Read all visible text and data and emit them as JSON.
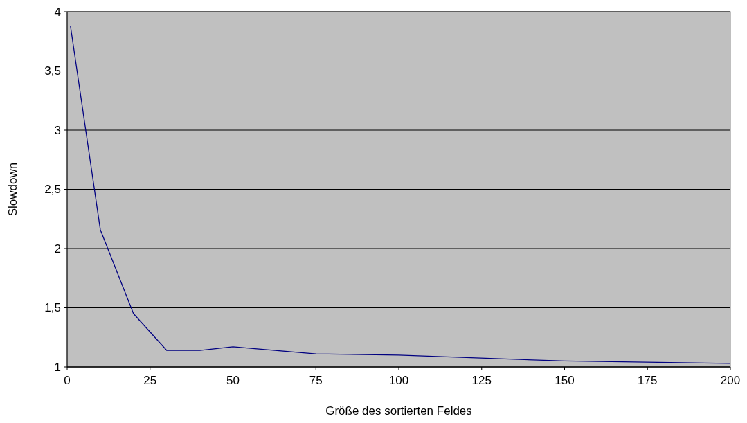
{
  "chart_data": {
    "type": "line",
    "xlabel": "Größe des sortierten Feldes",
    "ylabel": "Slowdown",
    "x": [
      1,
      10,
      20,
      30,
      40,
      50,
      75,
      100,
      150,
      200
    ],
    "series": [
      {
        "color": "#000080",
        "values": [
          3.88,
          2.16,
          1.45,
          1.14,
          1.14,
          1.17,
          1.11,
          1.1,
          1.05,
          1.03
        ]
      }
    ],
    "xlim": [
      0,
      200
    ],
    "xticks": [
      0,
      25,
      50,
      75,
      100,
      125,
      150,
      175,
      200
    ],
    "ylim": [
      1,
      4
    ],
    "yticks": [
      1,
      {
        "value": 1.5,
        "label": "1,5"
      },
      2,
      {
        "value": 2.5,
        "label": "2,5"
      },
      3,
      {
        "value": 3.5,
        "label": "3,5"
      },
      4
    ],
    "grid": "y"
  }
}
